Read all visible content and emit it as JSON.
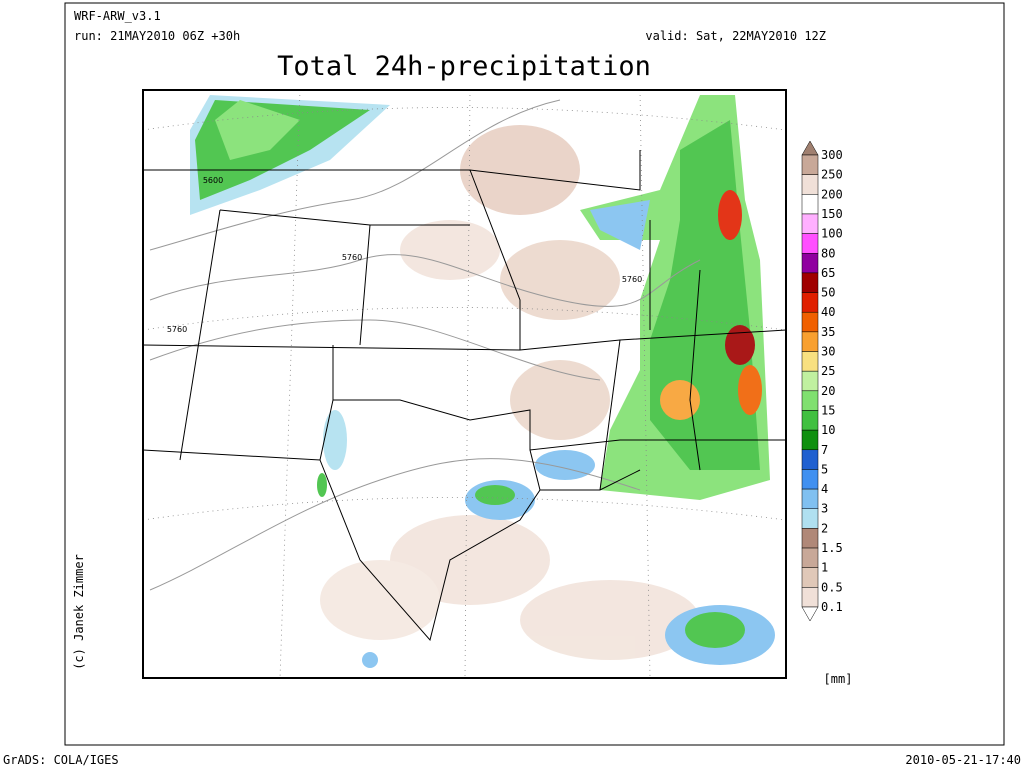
{
  "header": {
    "model": "WRF-ARW_v3.1",
    "run": "run: 21MAY2010 06Z +30h",
    "valid": "valid: Sat, 22MAY2010 12Z",
    "title": "Total 24h-precipitation"
  },
  "map": {
    "contour_labels": [
      "5600",
      "5760",
      "5760",
      "5760"
    ]
  },
  "colorbar": {
    "levels": [
      "300",
      "250",
      "200",
      "150",
      "100",
      "80",
      "65",
      "50",
      "40",
      "35",
      "30",
      "25",
      "20",
      "15",
      "10",
      "7",
      "5",
      "4",
      "3",
      "2",
      "1.5",
      "1",
      "0.5",
      "0.1"
    ],
    "colors": [
      "#a08070",
      "#c8a898",
      "#f0e0d8",
      "#ffffff",
      "#ffb0ff",
      "#ff50ff",
      "#9000a0",
      "#a00000",
      "#e02000",
      "#f06000",
      "#f8a030",
      "#f8e080",
      "#c0f0a0",
      "#80e070",
      "#40c040",
      "#109010",
      "#2060d0",
      "#4090f0",
      "#80c0f0",
      "#b0e0f0",
      "#b08878",
      "#c8a898",
      "#e0c8b8",
      "#f0e0d8",
      "#ffffff"
    ],
    "unit": "[mm]"
  },
  "credit": "(c) Janek Zimmer",
  "footer": {
    "left": "GrADS: COLA/IGES",
    "right": "2010-05-21-17:40"
  }
}
